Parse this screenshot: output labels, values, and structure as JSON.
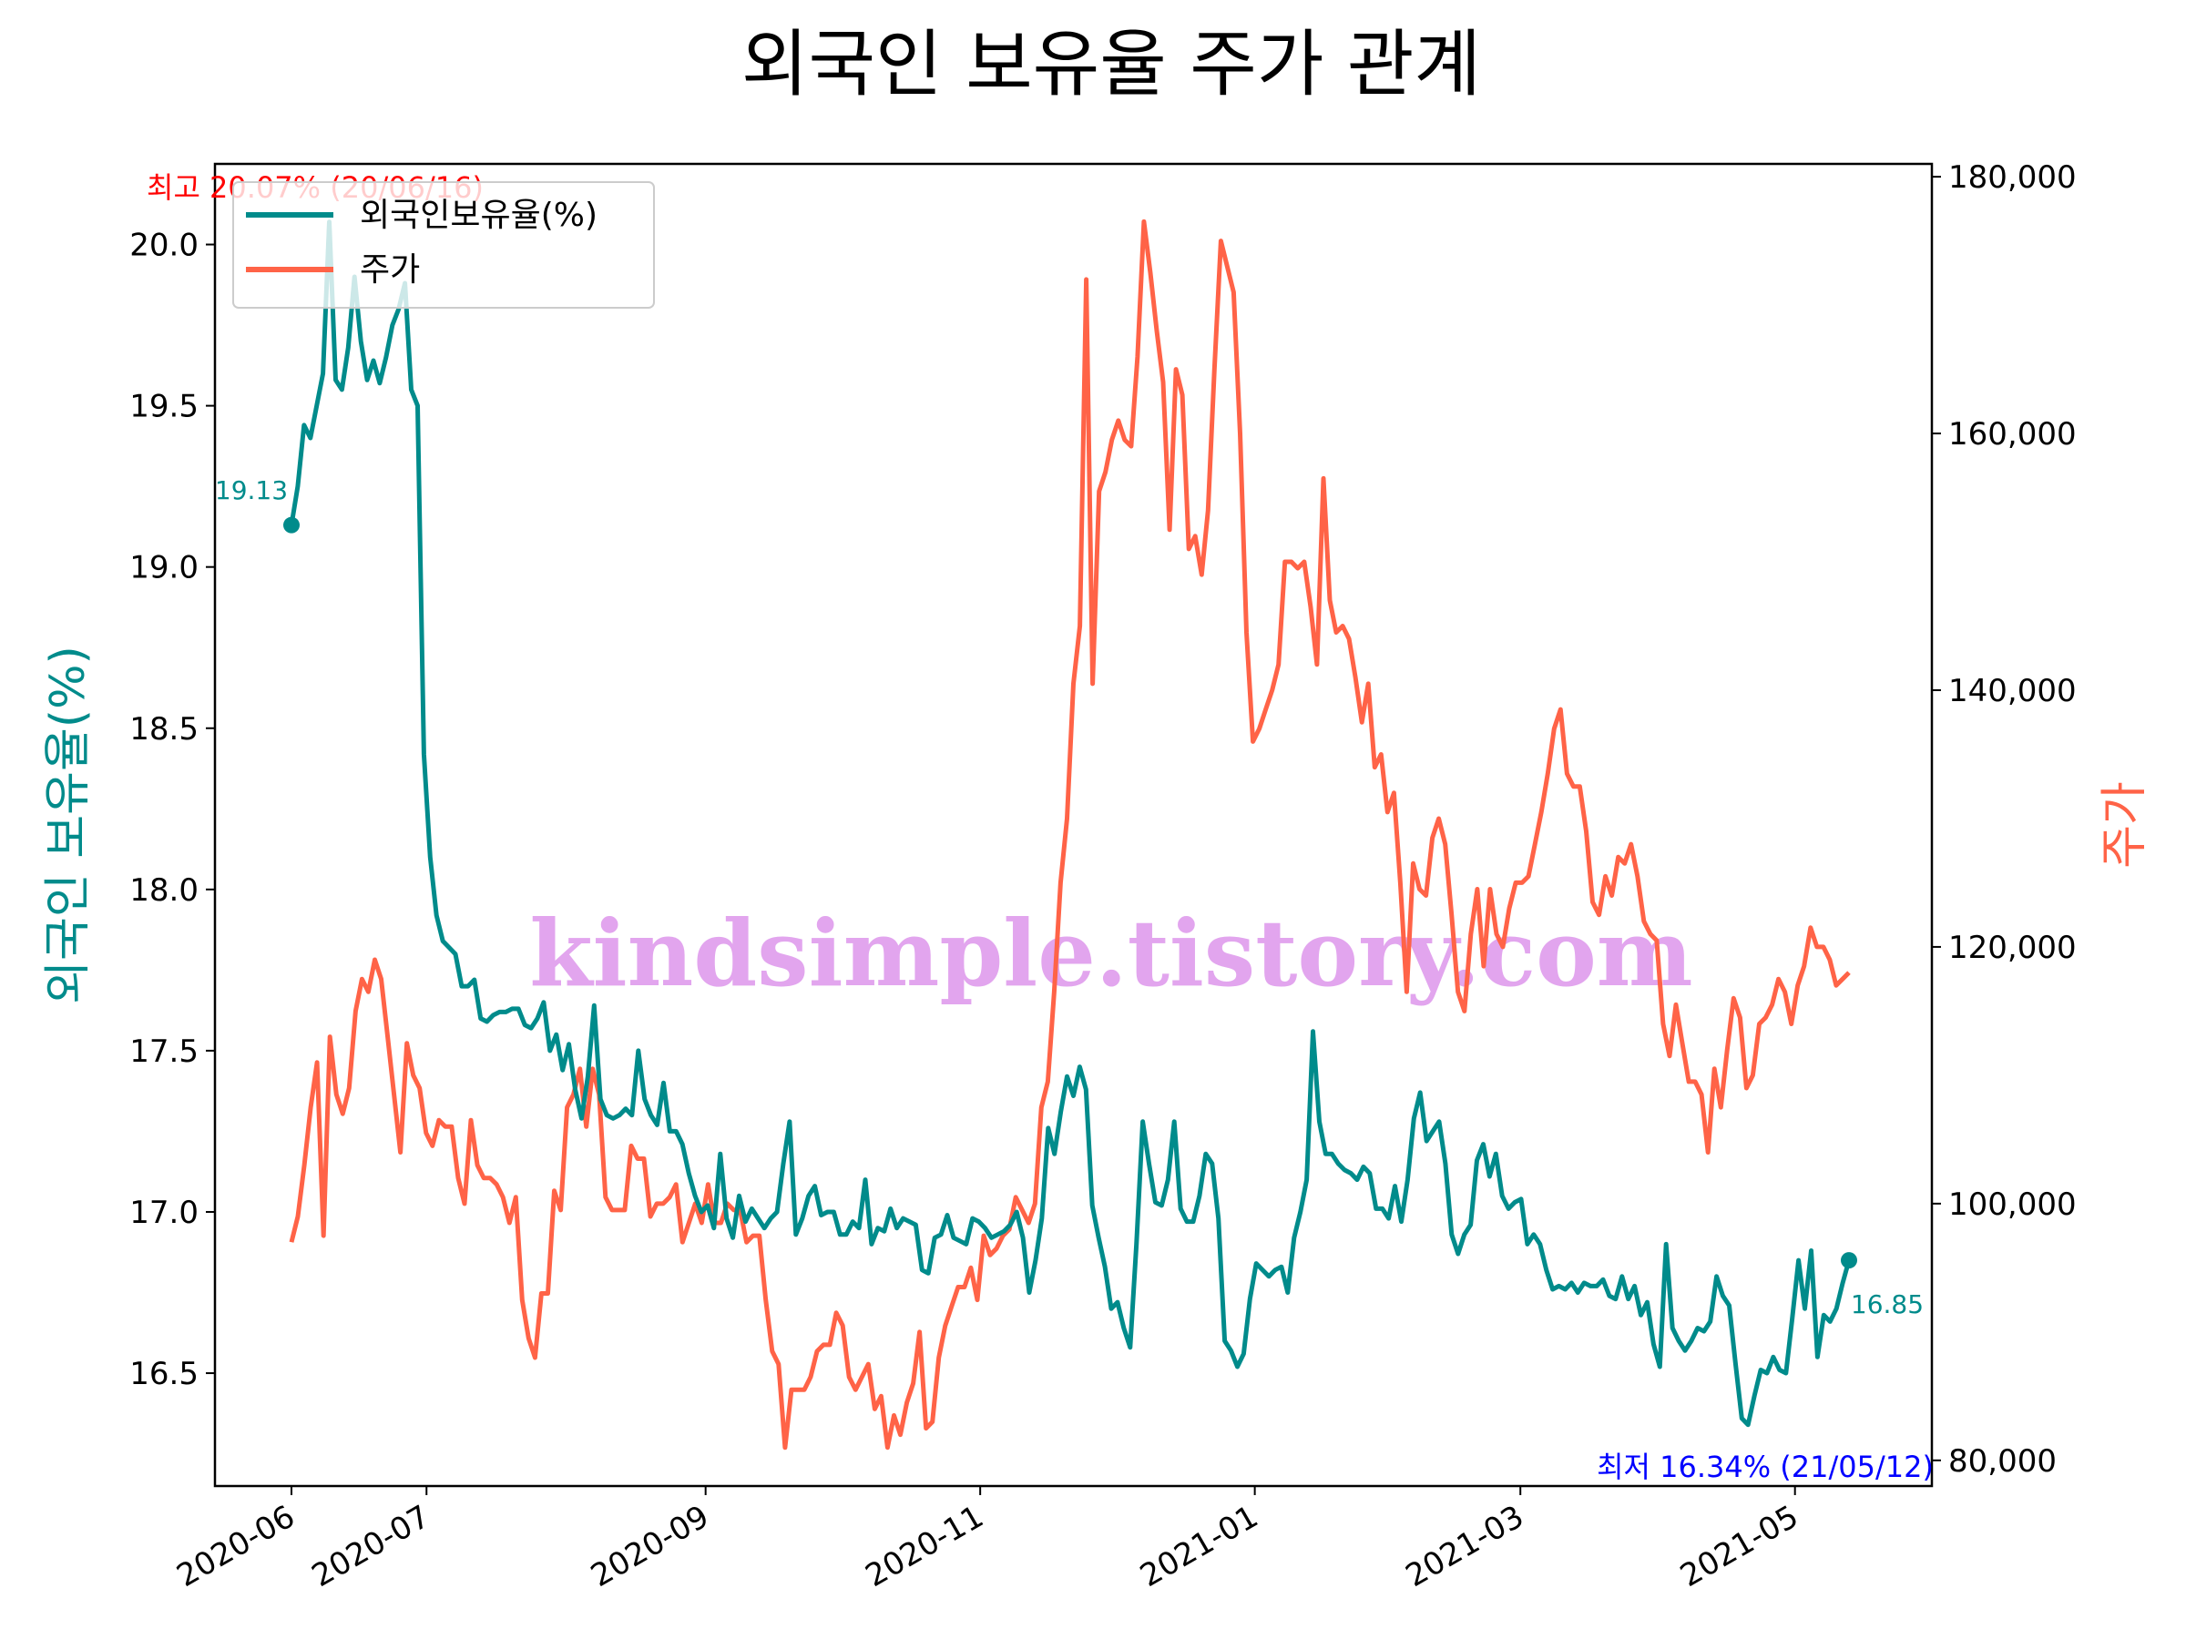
{
  "title": "외국인 보유율 주가 관계",
  "watermark": "kindsimple.tistory.com",
  "colors": {
    "foreign": "#008B8B",
    "price": "#FF6347",
    "max_note": "#FF0000",
    "min_note": "#0000FF",
    "watermark": "#e2a5ee"
  },
  "annotations": {
    "max": "최고 20.07% (20/06/16)",
    "min": "최저 16.34% (21/05/12)",
    "start": "19.13",
    "end": "16.85"
  },
  "chart_data": {
    "type": "line",
    "title": "외국인 보유율 주가 관계",
    "xlabel": "",
    "x_ticks": [
      "2020-06",
      "2020-07",
      "2020-09",
      "2020-11",
      "2021-01",
      "2021-03",
      "2021-05"
    ],
    "x_range": [
      "2020-06",
      "2021-05"
    ],
    "ylabel_left": "외국인 보유율(%)",
    "ylabel_right": "주가",
    "ylim_left": [
      16.15,
      20.25
    ],
    "ylim_right": [
      78000,
      181000
    ],
    "yticks_left": [
      "16.5",
      "17.0",
      "17.5",
      "18.0",
      "18.5",
      "19.0",
      "19.5",
      "20.0"
    ],
    "yticks_right": [
      "80,000",
      "100,000",
      "120,000",
      "140,000",
      "160,000",
      "180,000"
    ],
    "legend": {
      "position": "top-left",
      "entries": [
        "외국인보유율(%)",
        "주가"
      ]
    },
    "series": [
      {
        "name": "외국인보유율(%)",
        "axis": "left",
        "color": "#008B8B",
        "values": [
          19.13,
          19.25,
          19.44,
          19.4,
          19.5,
          19.6,
          20.07,
          19.58,
          19.55,
          19.68,
          19.9,
          19.7,
          19.58,
          19.64,
          19.57,
          19.65,
          19.75,
          19.8,
          19.88,
          19.55,
          19.5,
          18.42,
          18.1,
          17.92,
          17.84,
          17.82,
          17.8,
          17.7,
          17.7,
          17.72,
          17.6,
          17.59,
          17.61,
          17.62,
          17.62,
          17.63,
          17.63,
          17.58,
          17.57,
          17.6,
          17.65,
          17.5,
          17.55,
          17.44,
          17.52,
          17.38,
          17.29,
          17.42,
          17.64,
          17.35,
          17.3,
          17.29,
          17.3,
          17.32,
          17.3,
          17.5,
          17.35,
          17.3,
          17.27,
          17.4,
          17.25,
          17.25,
          17.21,
          17.12,
          17.05,
          17.0,
          17.02,
          16.95,
          17.18,
          16.98,
          16.92,
          17.05,
          16.97,
          17.01,
          16.98,
          16.95,
          16.98,
          17.0,
          17.15,
          17.28,
          16.93,
          16.98,
          17.05,
          17.08,
          16.99,
          17.0,
          17.0,
          16.93,
          16.93,
          16.97,
          16.95,
          17.1,
          16.9,
          16.95,
          16.94,
          17.01,
          16.95,
          16.98,
          16.97,
          16.96,
          16.82,
          16.81,
          16.92,
          16.93,
          16.99,
          16.92,
          16.91,
          16.9,
          16.98,
          16.97,
          16.95,
          16.92,
          16.93,
          16.94,
          16.96,
          17.0,
          16.92,
          16.75,
          16.85,
          16.98,
          17.26,
          17.18,
          17.31,
          17.42,
          17.36,
          17.45,
          17.38,
          17.02,
          16.92,
          16.83,
          16.7,
          16.72,
          16.64,
          16.58,
          16.9,
          17.28,
          17.15,
          17.03,
          17.02,
          17.1,
          17.28,
          17.01,
          16.97,
          16.97,
          17.05,
          17.18,
          17.15,
          16.98,
          16.6,
          16.57,
          16.52,
          16.56,
          16.73,
          16.84,
          16.82,
          16.8,
          16.82,
          16.83,
          16.75,
          16.92,
          17.0,
          17.1,
          17.56,
          17.28,
          17.18,
          17.18,
          17.15,
          17.13,
          17.12,
          17.1,
          17.14,
          17.12,
          17.01,
          17.01,
          16.98,
          17.08,
          16.97,
          17.1,
          17.29,
          17.37,
          17.22,
          17.25,
          17.28,
          17.15,
          16.93,
          16.87,
          16.93,
          16.96,
          17.16,
          17.21,
          17.11,
          17.18,
          17.05,
          17.01,
          17.03,
          17.04,
          16.9,
          16.93,
          16.9,
          16.82,
          16.76,
          16.77,
          16.76,
          16.78,
          16.75,
          16.78,
          16.77,
          16.77,
          16.79,
          16.74,
          16.73,
          16.8,
          16.73,
          16.77,
          16.68,
          16.72,
          16.59,
          16.52,
          16.9,
          16.64,
          16.6,
          16.57,
          16.6,
          16.64,
          16.63,
          16.66,
          16.8,
          16.74,
          16.71,
          16.53,
          16.36,
          16.34,
          16.43,
          16.51,
          16.5,
          16.55,
          16.51,
          16.5,
          16.67,
          16.85,
          16.7,
          16.88,
          16.55,
          16.68,
          16.66,
          16.7,
          16.78,
          16.85
        ]
      },
      {
        "name": "주가",
        "axis": "right",
        "color": "#FF6347",
        "values": [
          97000,
          99000,
          103000,
          107500,
          111000,
          97500,
          113000,
          108500,
          107000,
          109000,
          115000,
          117500,
          116500,
          119000,
          117500,
          113000,
          108500,
          104000,
          112500,
          110000,
          109000,
          105500,
          104500,
          106500,
          106000,
          106000,
          102000,
          100000,
          106500,
          103000,
          102000,
          102000,
          101500,
          100500,
          98500,
          100500,
          92500,
          89500,
          88000,
          93000,
          93000,
          101000,
          99500,
          107500,
          108500,
          110500,
          106000,
          110500,
          108500,
          100500,
          99500,
          99500,
          99500,
          104500,
          103500,
          103500,
          99000,
          100000,
          100000,
          100500,
          101500,
          97000,
          98500,
          100000,
          98500,
          101500,
          98500,
          98500,
          100000,
          99500,
          99500,
          97000,
          97500,
          97500,
          92500,
          88500,
          87500,
          81000,
          85500,
          85500,
          85500,
          86500,
          88500,
          89000,
          89000,
          91500,
          90500,
          86500,
          85500,
          86500,
          87500,
          84000,
          85000,
          81000,
          83500,
          82000,
          84500,
          86000,
          90000,
          82500,
          83000,
          88000,
          90500,
          92000,
          93500,
          93500,
          95000,
          92500,
          97500,
          96000,
          96500,
          97500,
          98000,
          100500,
          99500,
          98500,
          100000,
          107500,
          109500,
          116500,
          125000,
          130000,
          140500,
          145000,
          172000,
          140500,
          155500,
          157000,
          159500,
          161000,
          159500,
          159000,
          166000,
          176500,
          172500,
          168000,
          164000,
          152500,
          165000,
          163000,
          151000,
          152000,
          149000,
          154000,
          165000,
          175000,
          173000,
          171000,
          160000,
          144500,
          136000,
          137000,
          138500,
          140000,
          142000,
          150000,
          150000,
          149500,
          150000,
          146500,
          142000,
          156500,
          147000,
          144500,
          145000,
          144000,
          141000,
          137500,
          140500,
          134000,
          135000,
          130500,
          132000,
          125000,
          116500,
          126500,
          124500,
          124000,
          128500,
          130000,
          128000,
          122500,
          116500,
          115000,
          121000,
          124500,
          118500,
          124500,
          121000,
          120000,
          123000,
          125000,
          125000,
          125500,
          128000,
          130500,
          133500,
          137000,
          138500,
          133500,
          132500,
          132500,
          129000,
          123500,
          122500,
          125500,
          124000,
          127000,
          126500,
          128000,
          125500,
          122000,
          121000,
          120500,
          114000,
          111500,
          115500,
          112500,
          109500,
          109500,
          108500,
          104000,
          110500,
          107500,
          112000,
          116000,
          114500,
          109000,
          110000,
          114000,
          114500,
          115500,
          117500,
          116500,
          114000,
          117000,
          118500,
          121500,
          120000,
          120000,
          119000,
          117000,
          117500,
          118000
        ]
      }
    ]
  }
}
